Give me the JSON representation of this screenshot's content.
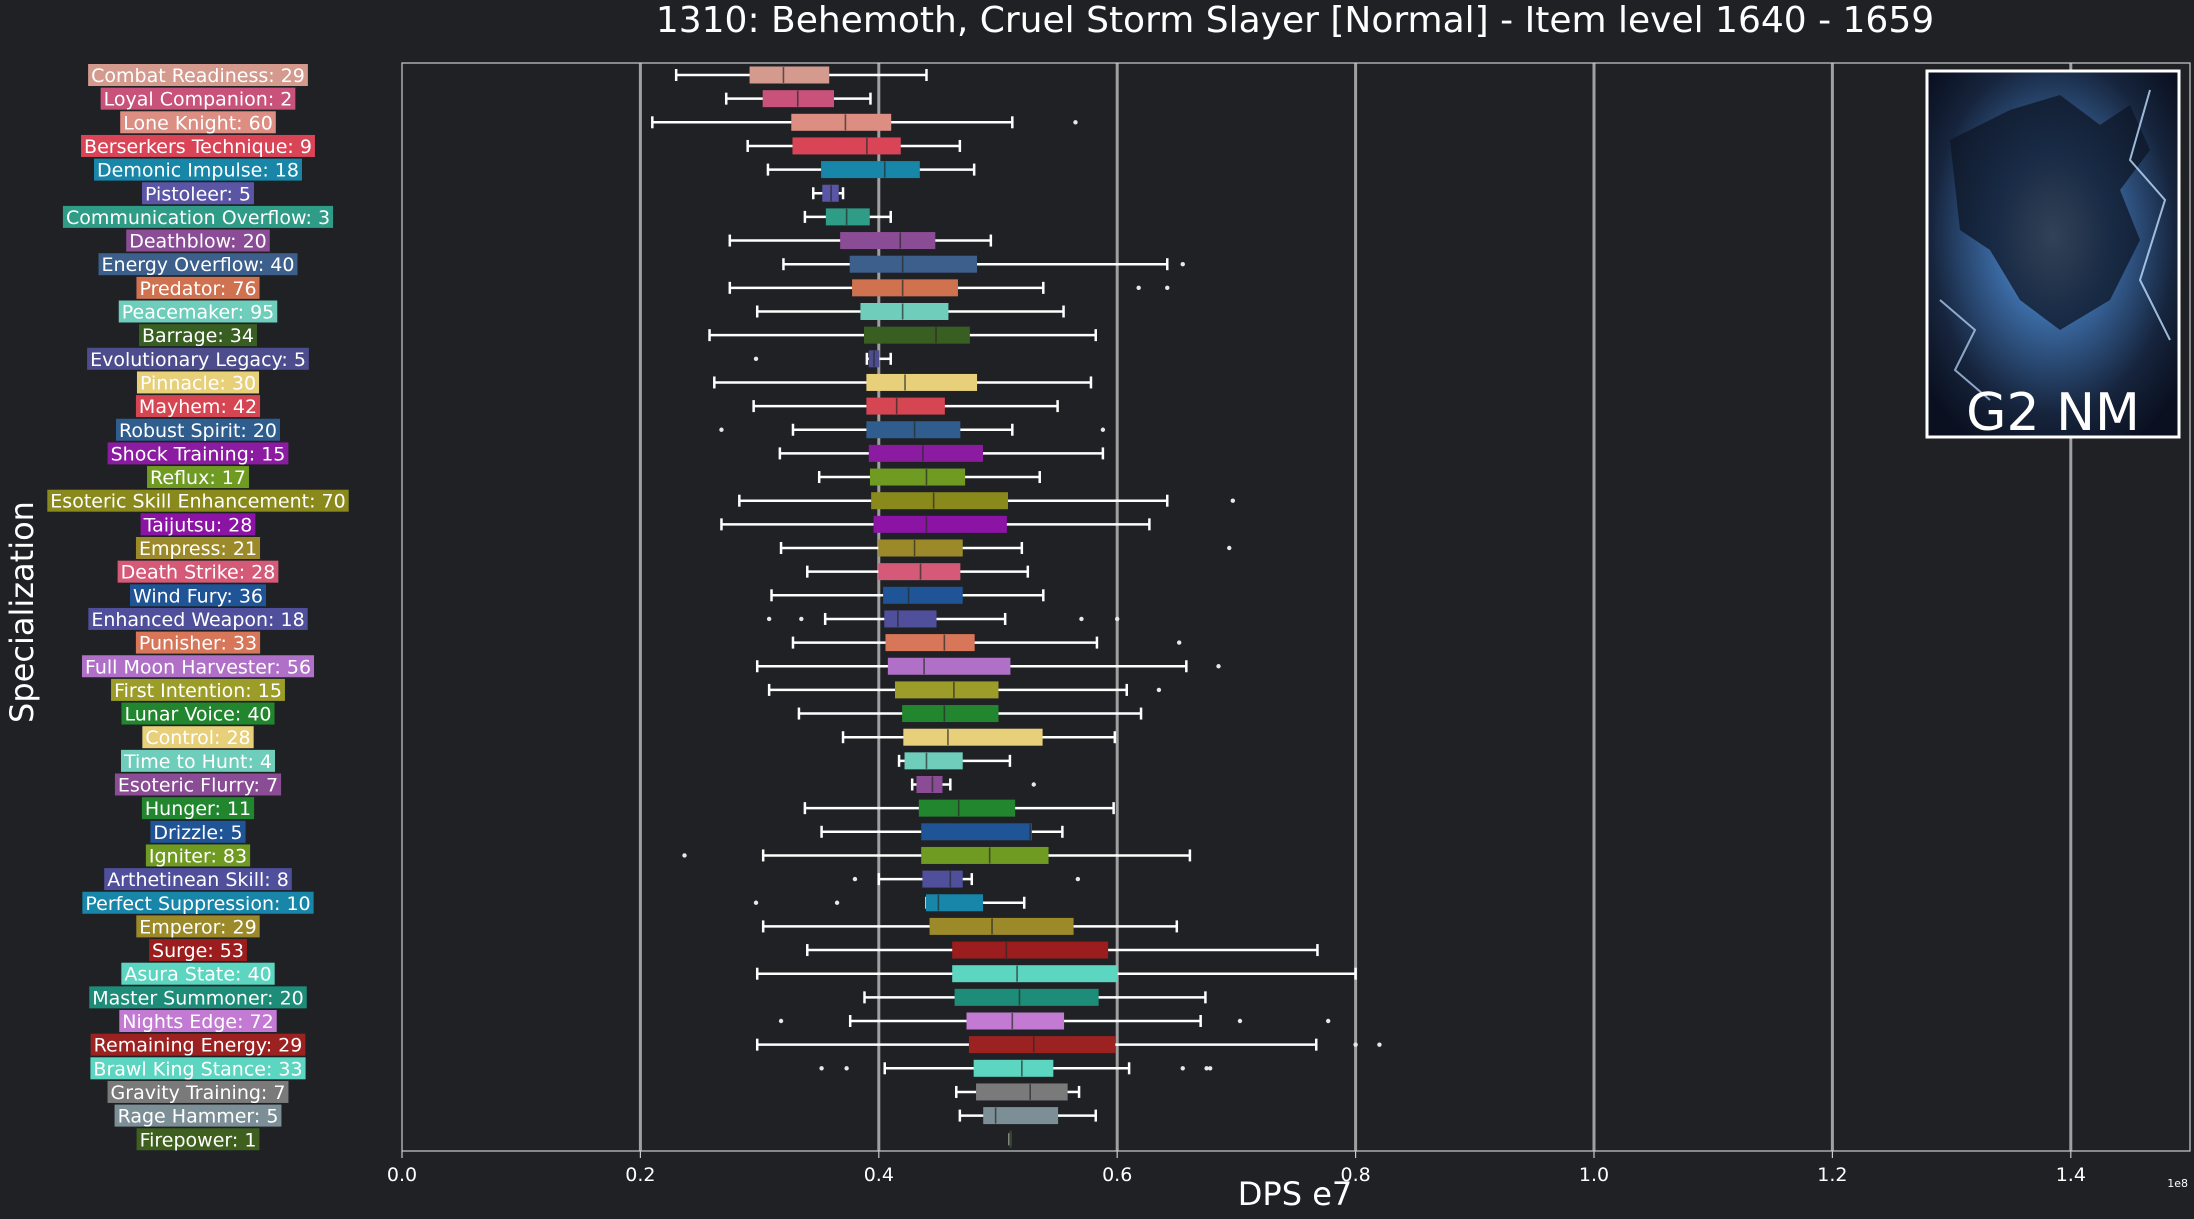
{
  "chart_data": {
    "type": "box",
    "title": "1310: Behemoth, Cruel Storm Slayer [Normal] - Item level 1640 - 1659",
    "xlabel": "DPS e7",
    "ylabel": "Specialization",
    "x_ticks": [
      "0.0",
      "0.2",
      "0.4",
      "0.6",
      "0.8",
      "1.0",
      "1.2",
      "1.4"
    ],
    "x_tick_values": [
      0,
      0.2,
      0.4,
      0.6,
      0.8,
      1.0,
      1.2,
      1.4
    ],
    "xlim": [
      0,
      1.5
    ],
    "offset_label": "1e8",
    "grid": "vertical",
    "image_label": "G2 NM",
    "series": [
      {
        "label": "Combat Readiness: 29",
        "color": "#d49a8e",
        "box": [
          0.23,
          0.292,
          0.32,
          0.358,
          0.44
        ],
        "outliers": []
      },
      {
        "label": "Loyal Companion: 2",
        "color": "#c9527a",
        "box": [
          0.272,
          0.303,
          0.332,
          0.362,
          0.393
        ],
        "outliers": []
      },
      {
        "label": "Lone Knight: 60",
        "color": "#dd8e82",
        "box": [
          0.21,
          0.327,
          0.372,
          0.41,
          0.512
        ],
        "outliers": [
          0.565
        ]
      },
      {
        "label": "Berserkers Technique: 9",
        "color": "#d94556",
        "box": [
          0.29,
          0.328,
          0.39,
          0.418,
          0.468
        ],
        "outliers": []
      },
      {
        "label": "Demonic Impulse: 18",
        "color": "#1786a8",
        "box": [
          0.307,
          0.352,
          0.405,
          0.434,
          0.48
        ],
        "outliers": []
      },
      {
        "label": "Pistoleer: 5",
        "color": "#5a55a5",
        "box": [
          0.345,
          0.353,
          0.36,
          0.366,
          0.37
        ],
        "outliers": []
      },
      {
        "label": "Communication Overflow: 3",
        "color": "#2e9c86",
        "box": [
          0.338,
          0.356,
          0.373,
          0.392,
          0.41
        ],
        "outliers": []
      },
      {
        "label": "Deathblow: 20",
        "color": "#8b4c96",
        "box": [
          0.275,
          0.368,
          0.418,
          0.447,
          0.494
        ],
        "outliers": []
      },
      {
        "label": "Energy Overflow: 40",
        "color": "#3d5f8c",
        "box": [
          0.32,
          0.376,
          0.42,
          0.482,
          0.642
        ],
        "outliers": [
          0.655
        ]
      },
      {
        "label": "Predator: 76",
        "color": "#d0714f",
        "box": [
          0.275,
          0.378,
          0.42,
          0.466,
          0.538
        ],
        "outliers": [
          0.618,
          0.642
        ]
      },
      {
        "label": "Peacemaker: 95",
        "color": "#6ecdbb",
        "box": [
          0.298,
          0.385,
          0.42,
          0.458,
          0.555
        ],
        "outliers": []
      },
      {
        "label": "Barrage: 34",
        "color": "#395e22",
        "box": [
          0.258,
          0.388,
          0.448,
          0.476,
          0.582
        ],
        "outliers": []
      },
      {
        "label": "Evolutionary Legacy: 5",
        "color": "#4d4d8e",
        "box": [
          0.39,
          0.392,
          0.396,
          0.4,
          0.41
        ],
        "outliers": [
          0.297
        ]
      },
      {
        "label": "Pinnacle: 30",
        "color": "#e8cf7a",
        "box": [
          0.262,
          0.39,
          0.422,
          0.482,
          0.578
        ],
        "outliers": []
      },
      {
        "label": "Mayhem: 42",
        "color": "#d64552",
        "box": [
          0.295,
          0.39,
          0.415,
          0.455,
          0.55
        ],
        "outliers": []
      },
      {
        "label": "Robust Spirit: 20",
        "color": "#2f5e8e",
        "box": [
          0.328,
          0.39,
          0.43,
          0.468,
          0.512
        ],
        "outliers": [
          0.268,
          0.588
        ]
      },
      {
        "label": "Shock Training: 15",
        "color": "#8b1ba0",
        "box": [
          0.317,
          0.392,
          0.437,
          0.487,
          0.588
        ],
        "outliers": []
      },
      {
        "label": "Reflux: 17",
        "color": "#6f9b23",
        "box": [
          0.35,
          0.393,
          0.44,
          0.472,
          0.535
        ],
        "outliers": []
      },
      {
        "label": "Esoteric Skill Enhancement: 70",
        "color": "#8a8a1c",
        "box": [
          0.283,
          0.394,
          0.446,
          0.508,
          0.642
        ],
        "outliers": [
          0.697
        ]
      },
      {
        "label": "Taijutsu: 28",
        "color": "#8c14a5",
        "box": [
          0.268,
          0.396,
          0.44,
          0.507,
          0.627
        ],
        "outliers": []
      },
      {
        "label": "Empress: 21",
        "color": "#9c8a2a",
        "box": [
          0.318,
          0.4,
          0.43,
          0.47,
          0.52
        ],
        "outliers": [
          0.694
        ]
      },
      {
        "label": "Death Strike: 28",
        "color": "#d55a78",
        "box": [
          0.34,
          0.4,
          0.435,
          0.468,
          0.525
        ],
        "outliers": []
      },
      {
        "label": "Wind Fury: 36",
        "color": "#1f5496",
        "box": [
          0.31,
          0.404,
          0.425,
          0.47,
          0.538
        ],
        "outliers": []
      },
      {
        "label": "Enhanced Weapon: 18",
        "color": "#4f4f9c",
        "box": [
          0.355,
          0.405,
          0.416,
          0.448,
          0.506
        ],
        "outliers": [
          0.308,
          0.335,
          0.57,
          0.6
        ]
      },
      {
        "label": "Punisher: 33",
        "color": "#d8765a",
        "box": [
          0.328,
          0.406,
          0.455,
          0.48,
          0.583
        ],
        "outliers": [
          0.652
        ]
      },
      {
        "label": "Full Moon Harvester: 56",
        "color": "#b070c8",
        "box": [
          0.298,
          0.408,
          0.438,
          0.51,
          0.658
        ],
        "outliers": [
          0.685
        ]
      },
      {
        "label": "First Intention: 15",
        "color": "#9c9c28",
        "box": [
          0.308,
          0.414,
          0.463,
          0.5,
          0.608
        ],
        "outliers": [
          0.635
        ]
      },
      {
        "label": "Lunar Voice: 40",
        "color": "#22862e",
        "box": [
          0.333,
          0.42,
          0.455,
          0.5,
          0.62
        ],
        "outliers": []
      },
      {
        "label": "Control: 28",
        "color": "#e8cf7a",
        "box": [
          0.37,
          0.421,
          0.458,
          0.537,
          0.598
        ],
        "outliers": []
      },
      {
        "label": "Time to Hunt: 4",
        "color": "#6ecdbb",
        "box": [
          0.417,
          0.422,
          0.44,
          0.47,
          0.51
        ],
        "outliers": []
      },
      {
        "label": "Esoteric Flurry: 7",
        "color": "#8b4c96",
        "box": [
          0.428,
          0.432,
          0.445,
          0.453,
          0.46
        ],
        "outliers": [
          0.53
        ]
      },
      {
        "label": "Hunger: 11",
        "color": "#22862e",
        "box": [
          0.338,
          0.434,
          0.467,
          0.514,
          0.597
        ],
        "outliers": []
      },
      {
        "label": "Drizzle: 5",
        "color": "#1f5496",
        "box": [
          0.352,
          0.436,
          0.527,
          0.528,
          0.554
        ],
        "outliers": []
      },
      {
        "label": "Igniter: 83",
        "color": "#6f9b23",
        "box": [
          0.303,
          0.436,
          0.493,
          0.542,
          0.661
        ],
        "outliers": [
          0.237
        ]
      },
      {
        "label": "Arthetinean Skill: 8",
        "color": "#4f4f9c",
        "box": [
          0.4,
          0.437,
          0.46,
          0.47,
          0.478
        ],
        "outliers": [
          0.38,
          0.567
        ]
      },
      {
        "label": "Perfect Suppression: 10",
        "color": "#1786a8",
        "box": [
          0.44,
          0.44,
          0.45,
          0.487,
          0.522
        ],
        "outliers": [
          0.297,
          0.365
        ]
      },
      {
        "label": "Emperor: 29",
        "color": "#9c8a2a",
        "box": [
          0.303,
          0.443,
          0.495,
          0.563,
          0.65
        ],
        "outliers": []
      },
      {
        "label": "Surge: 53",
        "color": "#9c1d1d",
        "box": [
          0.34,
          0.462,
          0.507,
          0.592,
          0.768
        ],
        "outliers": []
      },
      {
        "label": "Asura State: 40",
        "color": "#5cd6c0",
        "box": [
          0.298,
          0.462,
          0.516,
          0.6,
          0.8
        ],
        "outliers": []
      },
      {
        "label": "Master Summoner: 20",
        "color": "#1d8c78",
        "box": [
          0.388,
          0.464,
          0.518,
          0.584,
          0.674
        ],
        "outliers": []
      },
      {
        "label": "Nights Edge: 72",
        "color": "#c27ad2",
        "box": [
          0.376,
          0.474,
          0.512,
          0.555,
          0.67
        ],
        "outliers": [
          0.318,
          0.703,
          0.777
        ]
      },
      {
        "label": "Remaining Energy: 29",
        "color": "#9c2222",
        "box": [
          0.298,
          0.476,
          0.53,
          0.598,
          0.767
        ],
        "outliers": [
          0.8,
          0.82
        ]
      },
      {
        "label": "Brawl King Stance: 33",
        "color": "#5cd6c0",
        "box": [
          0.405,
          0.48,
          0.52,
          0.546,
          0.61
        ],
        "outliers": [
          0.352,
          0.373,
          0.655,
          0.675,
          0.678
        ]
      },
      {
        "label": "Gravity Training: 7",
        "color": "#7a7a7a",
        "box": [
          0.465,
          0.482,
          0.527,
          0.558,
          0.568
        ],
        "outliers": []
      },
      {
        "label": "Rage Hammer: 5",
        "color": "#7d8f96",
        "box": [
          0.468,
          0.488,
          0.498,
          0.55,
          0.582
        ],
        "outliers": []
      },
      {
        "label": "Firepower: 1",
        "color": "#3f5f1f",
        "box": [
          0.51,
          0.51,
          0.51,
          0.51,
          0.51
        ],
        "outliers": []
      }
    ]
  }
}
